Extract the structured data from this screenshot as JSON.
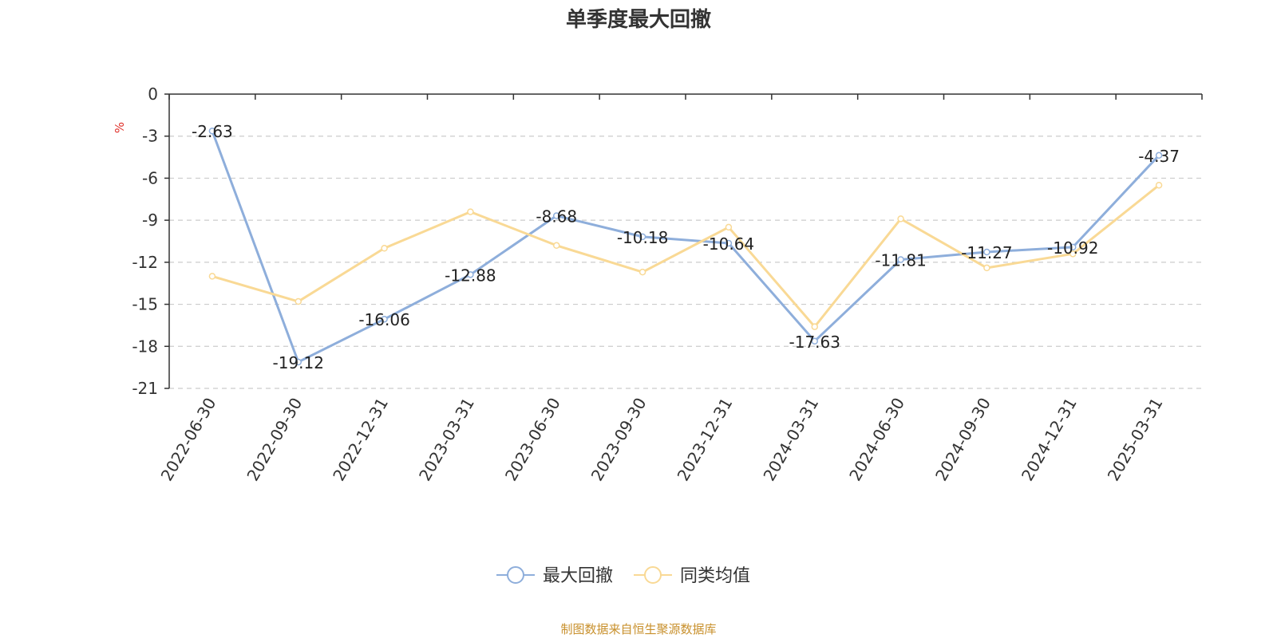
{
  "chart_data": {
    "type": "line",
    "title": "单季度最大回撤",
    "ylabel": "%",
    "xlabel": "",
    "categories": [
      "2022-06-30",
      "2022-09-30",
      "2022-12-31",
      "2023-03-31",
      "2023-06-30",
      "2023-09-30",
      "2023-12-31",
      "2024-03-31",
      "2024-06-30",
      "2024-09-30",
      "2024-12-31",
      "2025-03-31"
    ],
    "ylim": [
      -21,
      0
    ],
    "yticks": [
      0,
      -3,
      -6,
      -9,
      -12,
      -15,
      -18,
      -21
    ],
    "grid": true,
    "legend_position": "bottom-center",
    "series": [
      {
        "name": "最大回撤",
        "color": "#8eaedb",
        "show_labels": true,
        "values": [
          -2.63,
          -19.12,
          -16.06,
          -12.88,
          -8.68,
          -10.18,
          -10.64,
          -17.63,
          -11.81,
          -11.27,
          -10.92,
          -4.37
        ]
      },
      {
        "name": "同类均值",
        "color": "#f9d995",
        "show_labels": false,
        "values": [
          -13.0,
          -14.8,
          -11.0,
          -8.4,
          -10.8,
          -12.7,
          -9.5,
          -16.6,
          -8.9,
          -12.4,
          -11.4,
          -6.5
        ]
      }
    ]
  },
  "footer": "制图数据来自恒生聚源数据库"
}
